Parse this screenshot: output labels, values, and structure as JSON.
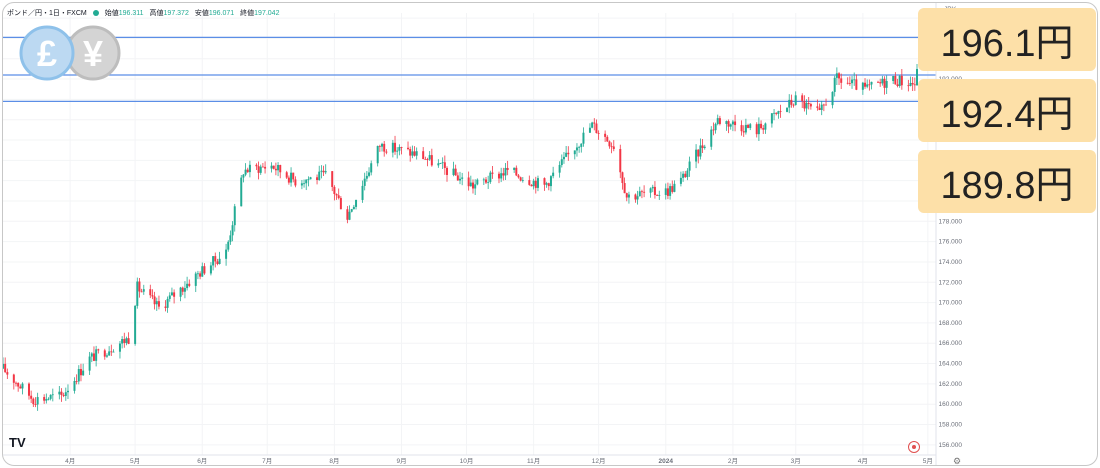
{
  "header": {
    "symbol": "ポンド／円・1日・FXCM",
    "open_label": "始値",
    "open_value": "196.311",
    "high_label": "高値",
    "high_value": "197.372",
    "low_label": "安値",
    "low_value": "196.071",
    "close_label": "終値",
    "close_value": "197.042"
  },
  "flags": {
    "gbp_symbol": "£",
    "jpy_symbol": "¥"
  },
  "callouts": [
    {
      "text": "196.1円"
    },
    {
      "text": "192.4円"
    },
    {
      "text": "189.8円"
    }
  ],
  "axis_unit": "JPY",
  "logo_text": "TV",
  "chart_data": {
    "type": "candlestick",
    "title": "ポンド／円・1日・FXCM",
    "x_ticks": [
      "4月",
      "5月",
      "6月",
      "7月",
      "8月",
      "9月",
      "10月",
      "11月",
      "12月",
      "2024",
      "2月",
      "3月",
      "4月",
      "5月"
    ],
    "y_ticks": [
      156,
      158,
      160,
      162,
      164,
      166,
      168,
      170,
      172,
      174,
      176,
      178,
      180,
      182,
      184,
      186,
      188,
      190,
      192,
      194,
      196,
      198
    ],
    "ylim": [
      155,
      198.5
    ],
    "horizontal_lines": [
      196.1,
      192.4,
      189.8
    ],
    "approx_close_path": [
      {
        "x": "2023-03-01",
        "y": 163.5
      },
      {
        "x": "2023-03-15",
        "y": 160.5
      },
      {
        "x": "2023-03-28",
        "y": 160.8
      },
      {
        "x": "2023-04-10",
        "y": 164.5
      },
      {
        "x": "2023-04-28",
        "y": 166.5
      },
      {
        "x": "2023-05-02",
        "y": 171.5
      },
      {
        "x": "2023-05-12",
        "y": 169.5
      },
      {
        "x": "2023-05-31",
        "y": 173.0
      },
      {
        "x": "2023-06-12",
        "y": 175.0
      },
      {
        "x": "2023-06-20",
        "y": 183.0
      },
      {
        "x": "2023-07-03",
        "y": 183.5
      },
      {
        "x": "2023-07-14",
        "y": 182.0
      },
      {
        "x": "2023-07-28",
        "y": 182.5
      },
      {
        "x": "2023-08-07",
        "y": 178.5
      },
      {
        "x": "2023-08-22",
        "y": 185.5
      },
      {
        "x": "2023-09-10",
        "y": 184.5
      },
      {
        "x": "2023-10-04",
        "y": 181.5
      },
      {
        "x": "2023-10-20",
        "y": 183.0
      },
      {
        "x": "2023-11-06",
        "y": 181.5
      },
      {
        "x": "2023-11-28",
        "y": 187.5
      },
      {
        "x": "2023-12-08",
        "y": 185.5
      },
      {
        "x": "2023-12-14",
        "y": 180.5
      },
      {
        "x": "2024-01-02",
        "y": 181.0
      },
      {
        "x": "2024-01-08",
        "y": 182.0
      },
      {
        "x": "2024-01-25",
        "y": 188.0
      },
      {
        "x": "2024-02-12",
        "y": 187.0
      },
      {
        "x": "2024-03-01",
        "y": 190.0
      },
      {
        "x": "2024-03-12",
        "y": 188.5
      },
      {
        "x": "2024-03-20",
        "y": 192.0
      },
      {
        "x": "2024-04-02",
        "y": 191.0
      },
      {
        "x": "2024-04-15",
        "y": 192.0
      },
      {
        "x": "2024-04-25",
        "y": 191.5
      },
      {
        "x": "2024-04-30",
        "y": 196.8
      }
    ]
  },
  "colors": {
    "up": "#22ab94",
    "down": "#f23645",
    "hline": "#5b8ee6",
    "callout": "#fde0a8"
  }
}
